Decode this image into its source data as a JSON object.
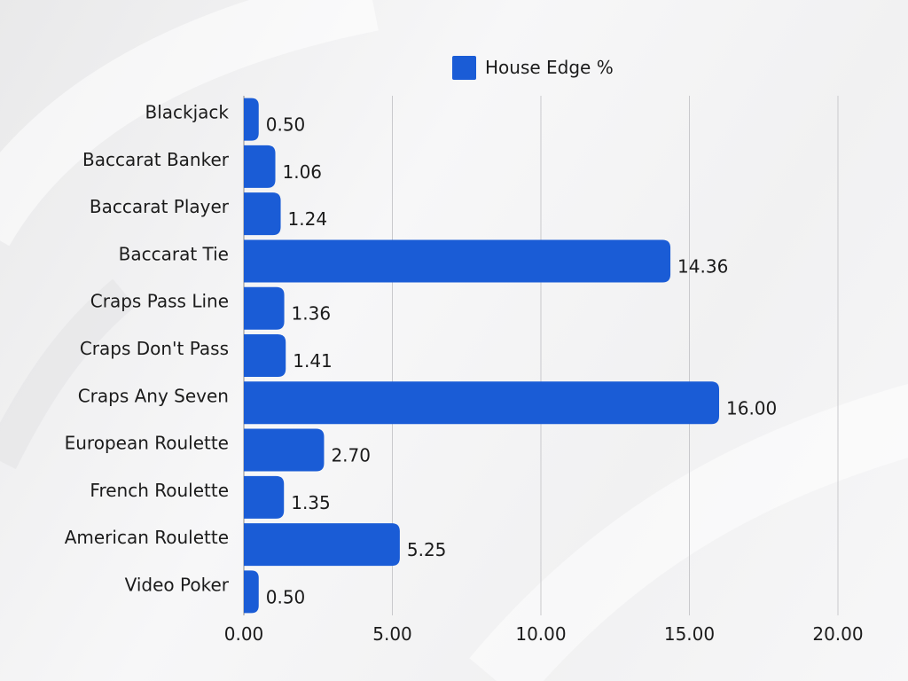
{
  "chart_data": {
    "type": "bar",
    "orientation": "horizontal",
    "categories": [
      "Blackjack",
      "Baccarat Banker",
      "Baccarat Player",
      "Baccarat Tie",
      "Craps Pass Line",
      "Craps Don't Pass",
      "Craps Any Seven",
      "European Roulette",
      "French Roulette",
      "American Roulette",
      "Video Poker"
    ],
    "series": [
      {
        "name": "House Edge %",
        "color": "#1a5cd6",
        "values": [
          0.5,
          1.06,
          1.24,
          14.36,
          1.36,
          1.41,
          16.0,
          2.7,
          1.35,
          5.25,
          0.5
        ],
        "value_labels": [
          "0.50",
          "1.06",
          "1.24",
          "14.36",
          "1.36",
          "1.41",
          "16.00",
          "2.70",
          "1.35",
          "5.25",
          "0.50"
        ]
      }
    ],
    "x_ticks": [
      "0.00",
      "5.00",
      "10.00",
      "15.00",
      "20.00"
    ],
    "xlim": [
      0,
      20
    ],
    "grid": "vertical",
    "legend_position": "top"
  }
}
